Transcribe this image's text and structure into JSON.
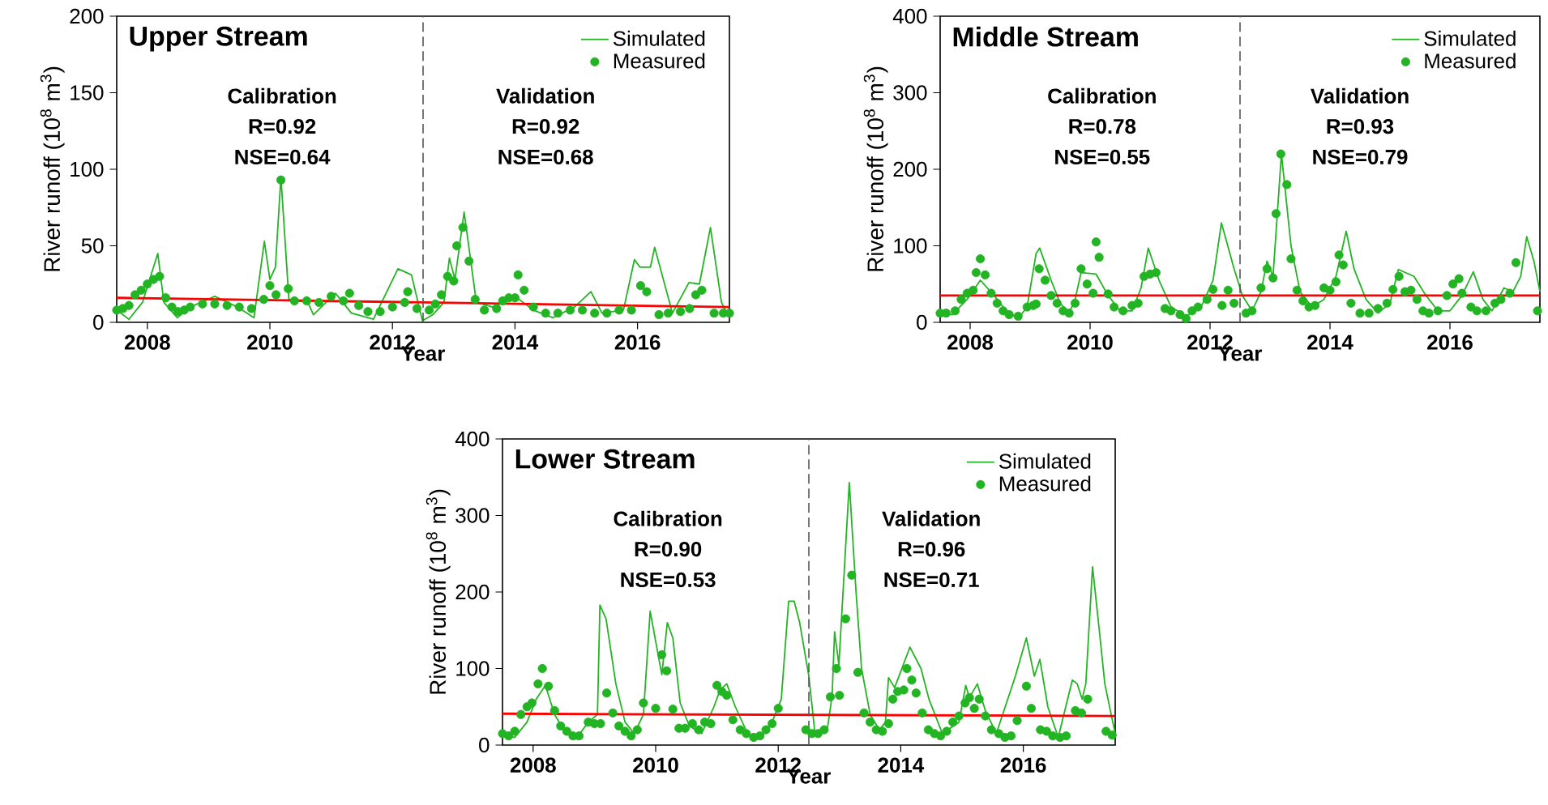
{
  "chart_data": [
    {
      "type": "line",
      "title": "Upper Stream",
      "xlabel": "Year",
      "ylabel": "River runoff (10$^{8}$ m$^{3}$)",
      "xlim": [
        2008,
        2018
      ],
      "xticks": [
        {
          "value": 2008.5,
          "label": "2008"
        },
        {
          "value": 2010.5,
          "label": "2010"
        },
        {
          "value": 2012.5,
          "label": "2012"
        },
        {
          "value": 2014.5,
          "label": "2014"
        },
        {
          "value": 2016.5,
          "label": "2016"
        }
      ],
      "ylim": [
        0,
        200
      ],
      "yticks": [
        0,
        50,
        100,
        150,
        200
      ],
      "legend": "top right",
      "annotations": [
        "Calibration",
        "R=0.92",
        "NSE=0.64",
        "Validation",
        "R=0.92",
        "NSE=0.68"
      ],
      "ref_lines": [
        {
          "axis": "x",
          "value": 2013,
          "color": "#555555",
          "line_style": "dashed"
        }
      ],
      "series": [
        {
          "name": "Simulated",
          "color": "#22b422",
          "x": [
            2008.0,
            2008.2,
            2008.42,
            2008.67,
            2008.77,
            2008.99,
            2009.2,
            2009.6,
            2009.97,
            2010.24,
            2010.41,
            2010.5,
            2010.59,
            2010.68,
            2010.81,
            2011.12,
            2011.21,
            2011.57,
            2011.83,
            2012.19,
            2012.59,
            2012.81,
            2012.99,
            2013.16,
            2013.34,
            2013.43,
            2013.52,
            2013.67,
            2013.87,
            2014.14,
            2014.5,
            2014.8,
            2015.12,
            2015.47,
            2015.74,
            2015.92,
            2016.27,
            2016.45,
            2016.54,
            2016.71,
            2016.78,
            2017.07,
            2017.34,
            2017.51,
            2017.69,
            2017.87,
            2018.0
          ],
          "values": [
            8,
            2,
            13,
            45,
            13,
            3,
            10,
            17,
            10,
            3,
            53,
            28,
            36,
            95,
            15,
            13,
            5,
            19,
            6,
            2,
            35,
            31,
            1,
            5,
            13,
            42,
            28,
            72,
            13,
            10,
            17,
            8,
            3,
            10,
            20,
            6,
            8,
            41,
            36,
            36,
            49,
            6,
            26,
            25,
            62,
            13,
            3
          ]
        },
        {
          "name": "Measured",
          "type": "scatter",
          "marker": "circle",
          "color": "#22b422",
          "x": [
            2008.0,
            2008.1,
            2008.2,
            2008.3,
            2008.4,
            2008.5,
            2008.6,
            2008.7,
            2008.8,
            2008.9,
            2009.0,
            2009.1,
            2009.2,
            2009.4,
            2009.6,
            2009.8,
            2010.0,
            2010.2,
            2010.4,
            2010.5,
            2010.6,
            2010.68,
            2010.8,
            2010.9,
            2011.1,
            2011.3,
            2011.5,
            2011.7,
            2011.8,
            2011.95,
            2012.1,
            2012.3,
            2012.5,
            2012.7,
            2012.75,
            2012.9,
            2013.1,
            2013.2,
            2013.3,
            2013.4,
            2013.5,
            2013.55,
            2013.65,
            2013.75,
            2013.85,
            2014.0,
            2014.2,
            2014.3,
            2014.4,
            2014.5,
            2014.55,
            2014.65,
            2014.8,
            2015.0,
            2015.2,
            2015.4,
            2015.6,
            2015.8,
            2016.0,
            2016.2,
            2016.4,
            2016.55,
            2016.65,
            2016.85,
            2017.0,
            2017.2,
            2017.35,
            2017.45,
            2017.55,
            2017.75,
            2017.9,
            2018.0
          ],
          "values": [
            8,
            9,
            11,
            18,
            21,
            25,
            28,
            30,
            16,
            10,
            7,
            8,
            10,
            12,
            12,
            11,
            10,
            9,
            15,
            24,
            18,
            93,
            22,
            14,
            14,
            13,
            17,
            14,
            19,
            11,
            7,
            7,
            10,
            13,
            20,
            9,
            8,
            12,
            18,
            30,
            27,
            50,
            62,
            40,
            15,
            8,
            9,
            14,
            16,
            16,
            31,
            21,
            10,
            6,
            6,
            8,
            8,
            6,
            6,
            8,
            8,
            24,
            20,
            5,
            6,
            7,
            9,
            18,
            21,
            6,
            6,
            6
          ]
        },
        {
          "type": "line",
          "color": "#ff0000",
          "x": [
            2008,
            2018
          ],
          "values": [
            16,
            10
          ]
        }
      ]
    },
    {
      "type": "line",
      "title": "Middle Stream",
      "xlabel": "Year",
      "ylabel": "River runoff (10$^{8}$ m$^{3}$)",
      "xlim": [
        2008,
        2018
      ],
      "xticks": [
        {
          "value": 2008.5,
          "label": "2008"
        },
        {
          "value": 2010.5,
          "label": "2010"
        },
        {
          "value": 2012.5,
          "label": "2012"
        },
        {
          "value": 2014.5,
          "label": "2014"
        },
        {
          "value": 2016.5,
          "label": "2016"
        }
      ],
      "ylim": [
        0,
        400
      ],
      "yticks": [
        0,
        100,
        200,
        300,
        400
      ],
      "legend": "top right",
      "annotations": [
        "Calibration",
        "R=0.78",
        "NSE=0.55",
        "Validation",
        "R=0.93",
        "NSE=0.79"
      ],
      "ref_lines": [
        {
          "axis": "x",
          "value": 2013,
          "color": "#555555",
          "line_style": "dashed"
        }
      ],
      "series": [
        {
          "name": "Simulated",
          "color": "#22b422",
          "x": [
            2008.0,
            2008.2,
            2008.45,
            2008.67,
            2008.9,
            2009.1,
            2009.3,
            2009.45,
            2009.6,
            2009.66,
            2009.85,
            2010.0,
            2010.15,
            2010.25,
            2010.35,
            2010.6,
            2010.8,
            2011.0,
            2011.2,
            2011.35,
            2011.47,
            2011.65,
            2011.85,
            2012.1,
            2012.35,
            2012.55,
            2012.69,
            2012.9,
            2013.04,
            2013.2,
            2013.35,
            2013.45,
            2013.55,
            2013.69,
            2013.85,
            2014.0,
            2014.2,
            2014.4,
            2014.6,
            2014.77,
            2014.9,
            2015.1,
            2015.3,
            2015.5,
            2015.64,
            2015.9,
            2016.1,
            2016.3,
            2016.5,
            2016.7,
            2016.89,
            2017.05,
            2017.2,
            2017.4,
            2017.55,
            2017.68,
            2017.78,
            2017.9,
            2018.0
          ],
          "values": [
            15,
            10,
            30,
            55,
            35,
            15,
            5,
            20,
            90,
            97,
            55,
            25,
            12,
            30,
            65,
            63,
            35,
            15,
            15,
            45,
            97,
            55,
            20,
            8,
            20,
            55,
            130,
            70,
            35,
            15,
            40,
            80,
            60,
            220,
            100,
            40,
            20,
            30,
            60,
            119,
            70,
            30,
            12,
            25,
            69,
            60,
            35,
            15,
            15,
            35,
            66,
            30,
            15,
            45,
            40,
            60,
            112,
            80,
            40
          ]
        },
        {
          "name": "Measured",
          "type": "scatter",
          "marker": "circle",
          "color": "#22b422",
          "x": [
            2008.0,
            2008.1,
            2008.25,
            2008.35,
            2008.45,
            2008.55,
            2008.6,
            2008.67,
            2008.75,
            2008.85,
            2008.95,
            2009.05,
            2009.15,
            2009.3,
            2009.45,
            2009.55,
            2009.6,
            2009.65,
            2009.75,
            2009.85,
            2009.95,
            2010.05,
            2010.15,
            2010.25,
            2010.35,
            2010.45,
            2010.55,
            2010.6,
            2010.65,
            2010.8,
            2010.9,
            2011.05,
            2011.2,
            2011.3,
            2011.4,
            2011.5,
            2011.6,
            2011.75,
            2011.85,
            2012.0,
            2012.1,
            2012.2,
            2012.3,
            2012.45,
            2012.55,
            2012.7,
            2012.8,
            2012.9,
            2013.1,
            2013.2,
            2013.35,
            2013.45,
            2013.55,
            2013.6,
            2013.68,
            2013.78,
            2013.85,
            2013.95,
            2014.05,
            2014.15,
            2014.25,
            2014.4,
            2014.5,
            2014.6,
            2014.65,
            2014.72,
            2014.85,
            2015.0,
            2015.15,
            2015.3,
            2015.45,
            2015.55,
            2015.65,
            2015.75,
            2015.85,
            2015.95,
            2016.05,
            2016.15,
            2016.3,
            2016.45,
            2016.55,
            2016.65,
            2016.7,
            2016.85,
            2016.95,
            2017.1,
            2017.25,
            2017.35,
            2017.5,
            2017.6,
            2017.96
          ],
          "values": [
            12,
            12,
            15,
            30,
            38,
            42,
            65,
            83,
            62,
            38,
            25,
            15,
            10,
            8,
            20,
            22,
            24,
            70,
            55,
            35,
            25,
            15,
            12,
            25,
            70,
            50,
            38,
            105,
            85,
            37,
            20,
            15,
            22,
            25,
            60,
            63,
            65,
            18,
            15,
            10,
            5,
            15,
            20,
            30,
            43,
            22,
            42,
            25,
            12,
            15,
            45,
            70,
            58,
            142,
            220,
            180,
            83,
            42,
            28,
            20,
            22,
            45,
            42,
            53,
            88,
            75,
            25,
            12,
            12,
            18,
            25,
            43,
            60,
            40,
            42,
            30,
            15,
            12,
            15,
            35,
            50,
            57,
            38,
            20,
            15,
            15,
            25,
            30,
            38,
            78,
            15
          ]
        },
        {
          "type": "line",
          "color": "#ff0000",
          "x": [
            2008,
            2018
          ],
          "values": [
            35,
            35
          ]
        }
      ]
    },
    {
      "type": "line",
      "title": "Lower Stream",
      "xlabel": "Year",
      "ylabel": "River runoff (10$^{8}$ m$^{3}$)",
      "xlim": [
        2008,
        2018
      ],
      "xticks": [
        {
          "value": 2008.5,
          "label": "2008"
        },
        {
          "value": 2010.5,
          "label": "2010"
        },
        {
          "value": 2012.5,
          "label": "2012"
        },
        {
          "value": 2014.5,
          "label": "2014"
        },
        {
          "value": 2016.5,
          "label": "2016"
        }
      ],
      "ylim": [
        0,
        400
      ],
      "yticks": [
        0,
        100,
        200,
        300,
        400
      ],
      "legend": "top right",
      "annotations": [
        "Calibration",
        "R=0.90",
        "NSE=0.53",
        "Validation",
        "R=0.96",
        "NSE=0.71"
      ],
      "ref_lines": [
        {
          "axis": "x",
          "value": 2013,
          "color": "#555555",
          "line_style": "dashed"
        }
      ],
      "series": [
        {
          "name": "Simulated",
          "color": "#22b422",
          "x": [
            2008.0,
            2008.2,
            2008.4,
            2008.55,
            2008.7,
            2008.85,
            2009.0,
            2009.2,
            2009.4,
            2009.55,
            2009.59,
            2009.69,
            2009.85,
            2010.0,
            2010.15,
            2010.3,
            2010.41,
            2010.6,
            2010.69,
            2010.78,
            2010.9,
            2011.05,
            2011.25,
            2011.45,
            2011.55,
            2011.66,
            2011.8,
            2012.0,
            2012.2,
            2012.4,
            2012.55,
            2012.67,
            2012.76,
            2012.85,
            2013.0,
            2013.1,
            2013.3,
            2013.38,
            2013.42,
            2013.49,
            2013.66,
            2013.77,
            2013.86,
            2014.0,
            2014.15,
            2014.25,
            2014.3,
            2014.4,
            2014.65,
            2014.83,
            2014.96,
            2015.18,
            2015.45,
            2015.56,
            2015.62,
            2015.75,
            2015.88,
            2016.06,
            2016.37,
            2016.55,
            2016.68,
            2016.77,
            2016.9,
            2017.07,
            2017.3,
            2017.38,
            2017.46,
            2017.52,
            2017.63,
            2017.74,
            2017.83,
            2017.96,
            2018.0
          ],
          "values": [
            15,
            10,
            30,
            60,
            78,
            40,
            20,
            8,
            30,
            40,
            183,
            165,
            80,
            30,
            15,
            40,
            175,
            92,
            160,
            140,
            55,
            25,
            15,
            50,
            72,
            80,
            50,
            15,
            8,
            30,
            60,
            188,
            188,
            160,
            90,
            15,
            20,
            65,
            148,
            105,
            343,
            200,
            100,
            40,
            20,
            30,
            88,
            75,
            128,
            100,
            60,
            15,
            30,
            78,
            62,
            80,
            45,
            15,
            90,
            140,
            90,
            112,
            50,
            10,
            85,
            80,
            60,
            80,
            233,
            150,
            80,
            30,
            15
          ]
        },
        {
          "name": "Measured",
          "type": "scatter",
          "marker": "circle",
          "color": "#22b422",
          "x": [
            2008.0,
            2008.1,
            2008.2,
            2008.3,
            2008.4,
            2008.48,
            2008.58,
            2008.65,
            2008.75,
            2008.85,
            2008.95,
            2009.05,
            2009.15,
            2009.25,
            2009.4,
            2009.5,
            2009.6,
            2009.7,
            2009.8,
            2009.9,
            2010.0,
            2010.1,
            2010.2,
            2010.3,
            2010.5,
            2010.6,
            2010.68,
            2010.78,
            2010.88,
            2010.98,
            2011.1,
            2011.2,
            2011.3,
            2011.4,
            2011.5,
            2011.58,
            2011.66,
            2011.76,
            2011.88,
            2011.98,
            2012.1,
            2012.2,
            2012.3,
            2012.4,
            2012.5,
            2012.95,
            2013.05,
            2013.15,
            2013.25,
            2013.35,
            2013.45,
            2013.5,
            2013.6,
            2013.7,
            2013.8,
            2013.9,
            2014.0,
            2014.1,
            2014.2,
            2014.3,
            2014.37,
            2014.45,
            2014.55,
            2014.6,
            2014.68,
            2014.75,
            2014.85,
            2014.95,
            2015.05,
            2015.15,
            2015.25,
            2015.35,
            2015.45,
            2015.55,
            2015.62,
            2015.7,
            2015.78,
            2015.88,
            2015.98,
            2016.1,
            2016.2,
            2016.3,
            2016.4,
            2016.55,
            2016.63,
            2016.78,
            2016.88,
            2016.98,
            2017.1,
            2017.2,
            2017.35,
            2017.45,
            2017.55,
            2017.85,
            2017.95
          ],
          "values": [
            15,
            12,
            18,
            40,
            50,
            55,
            80,
            100,
            77,
            45,
            25,
            18,
            12,
            12,
            30,
            28,
            28,
            68,
            42,
            25,
            18,
            12,
            20,
            55,
            48,
            118,
            97,
            47,
            22,
            22,
            28,
            20,
            30,
            28,
            78,
            70,
            65,
            33,
            20,
            15,
            10,
            12,
            20,
            28,
            48,
            20,
            15,
            15,
            20,
            63,
            100,
            65,
            165,
            222,
            95,
            42,
            30,
            20,
            18,
            28,
            60,
            70,
            72,
            100,
            85,
            68,
            42,
            20,
            15,
            12,
            18,
            30,
            38,
            55,
            62,
            48,
            60,
            38,
            20,
            15,
            10,
            12,
            32,
            77,
            48,
            20,
            18,
            12,
            10,
            12,
            45,
            42,
            60,
            18,
            13
          ]
        },
        {
          "type": "line",
          "color": "#ff0000",
          "x": [
            2008,
            2018
          ],
          "values": [
            41,
            38
          ]
        }
      ]
    }
  ]
}
